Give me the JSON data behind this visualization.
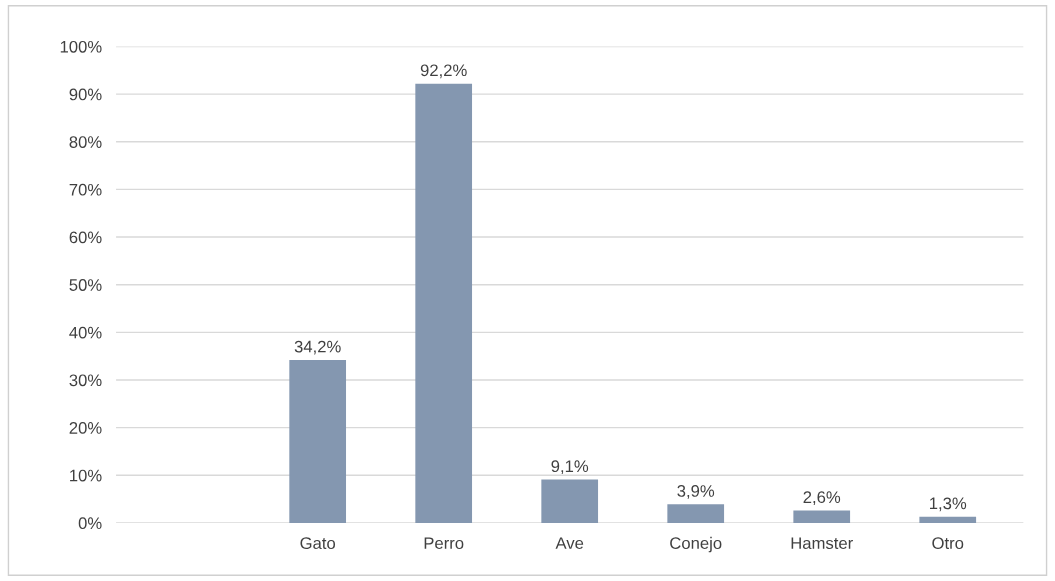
{
  "chart_data": {
    "type": "bar",
    "categories": [
      null,
      "Gato",
      "Perro",
      "Ave",
      "Conejo",
      "Hamster",
      "Otro"
    ],
    "values": [
      null,
      34.2,
      92.2,
      9.1,
      3.9,
      2.6,
      1.3
    ],
    "value_labels": [
      null,
      "34,2%",
      "92,2%",
      "9,1%",
      "3,9%",
      "2,6%",
      "1,3%"
    ],
    "color": "#8497b0",
    "ylim": [
      0,
      100
    ],
    "yticks": [
      {
        "value": 0,
        "label": "0%"
      },
      {
        "value": 10,
        "label": "10%"
      },
      {
        "value": 20,
        "label": "20%"
      },
      {
        "value": 30,
        "label": "30%"
      },
      {
        "value": 40,
        "label": "40%"
      },
      {
        "value": 50,
        "label": "50%"
      },
      {
        "value": 60,
        "label": "60%"
      },
      {
        "value": 70,
        "label": "70%"
      },
      {
        "value": 80,
        "label": "80%"
      },
      {
        "value": 90,
        "label": "90%"
      },
      {
        "value": 100,
        "label": "100%"
      }
    ],
    "grid": "y"
  }
}
